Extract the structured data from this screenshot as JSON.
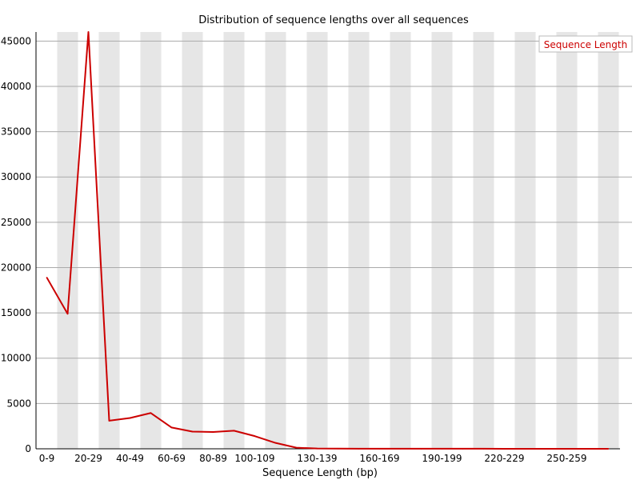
{
  "chart_data": {
    "type": "line",
    "title": "Distribution of sequence lengths over all sequences",
    "xlabel": "Sequence Length (bp)",
    "ylabel": "",
    "ylim": [
      0,
      46000
    ],
    "y_ticks": [
      0,
      5000,
      10000,
      15000,
      20000,
      25000,
      30000,
      35000,
      40000,
      45000
    ],
    "categories": [
      "0-9",
      "10-19",
      "20-29",
      "30-39",
      "40-49",
      "50-59",
      "60-69",
      "70-79",
      "80-89",
      "90-99",
      "100-109",
      "110-119",
      "120-129",
      "130-139",
      "140-149",
      "150-159",
      "160-169",
      "170-179",
      "180-189",
      "190-199",
      "200-209",
      "210-219",
      "220-229",
      "230-239",
      "240-249",
      "250-259",
      "260-269",
      "270-279"
    ],
    "x_tick_labels": [
      "0-9",
      "",
      "20-29",
      "",
      "40-49",
      "",
      "60-69",
      "",
      "80-89",
      "",
      "100-109",
      "",
      "",
      "130-139",
      "",
      "",
      "160-169",
      "",
      "",
      "190-199",
      "",
      "",
      "220-229",
      "",
      "",
      "250-259",
      "",
      ""
    ],
    "series": [
      {
        "name": "Sequence Length",
        "color": "#cc0000",
        "values": [
          18900,
          14900,
          46000,
          3100,
          3400,
          3950,
          2350,
          1900,
          1850,
          2000,
          1400,
          650,
          120,
          30,
          20,
          15,
          10,
          10,
          8,
          8,
          6,
          6,
          5,
          5,
          4,
          4,
          3,
          3
        ]
      }
    ],
    "legend_position": "top-right",
    "grid": true
  }
}
